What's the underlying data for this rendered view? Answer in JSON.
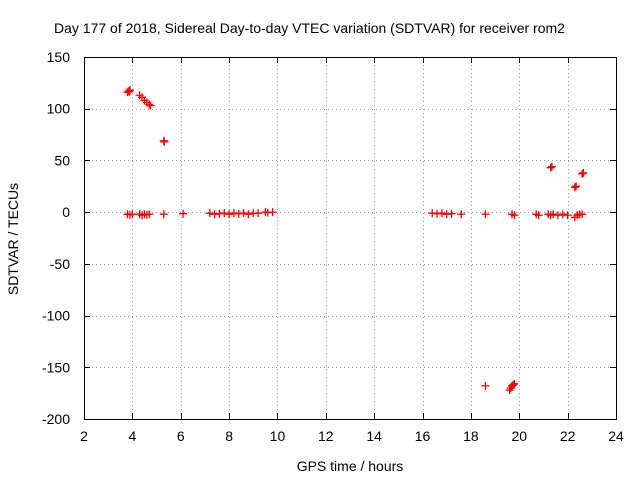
{
  "chart_data": {
    "type": "scatter",
    "title": "Day 177 of 2018, Sidereal Day-to-day VTEC variation (SDTVAR) for receiver rom2",
    "xlabel": "GPS time / hours",
    "ylabel": "SDTVAR / TECUs",
    "xlim": [
      2,
      24
    ],
    "ylim": [
      -200,
      150
    ],
    "xticks": [
      2,
      4,
      6,
      8,
      10,
      12,
      14,
      16,
      18,
      20,
      22,
      24
    ],
    "yticks": [
      -200,
      -150,
      -100,
      -50,
      0,
      50,
      100,
      150
    ],
    "grid": true,
    "marker": "plus",
    "color": "#ff0000",
    "series": [
      {
        "name": "SDTVAR",
        "points": [
          [
            3.8,
            116
          ],
          [
            3.85,
            117
          ],
          [
            3.9,
            118
          ],
          [
            3.88,
            116.5
          ],
          [
            4.3,
            113
          ],
          [
            4.4,
            111
          ],
          [
            4.5,
            108
          ],
          [
            4.6,
            106
          ],
          [
            4.7,
            104
          ],
          [
            4.75,
            103
          ],
          [
            5.3,
            69
          ],
          [
            5.32,
            68
          ],
          [
            3.8,
            -2
          ],
          [
            3.9,
            -2.5
          ],
          [
            4.0,
            -2
          ],
          [
            4.3,
            -2
          ],
          [
            4.4,
            -3
          ],
          [
            4.5,
            -2
          ],
          [
            4.6,
            -2.5
          ],
          [
            4.7,
            -2
          ],
          [
            5.3,
            -2
          ],
          [
            6.1,
            -1.5
          ],
          [
            7.2,
            -1
          ],
          [
            7.4,
            -2
          ],
          [
            7.6,
            -1.5
          ],
          [
            7.8,
            -1
          ],
          [
            8.0,
            -2
          ],
          [
            8.2,
            -1
          ],
          [
            8.4,
            -1.5
          ],
          [
            8.6,
            -1
          ],
          [
            8.8,
            -2
          ],
          [
            9.0,
            -1
          ],
          [
            9.2,
            -1
          ],
          [
            9.5,
            0
          ],
          [
            9.6,
            -0.5
          ],
          [
            9.8,
            0
          ],
          [
            16.4,
            -1
          ],
          [
            16.6,
            -1.5
          ],
          [
            16.8,
            -1
          ],
          [
            17.0,
            -2
          ],
          [
            17.2,
            -1.5
          ],
          [
            17.6,
            -2
          ],
          [
            18.6,
            -2
          ],
          [
            18.6,
            -168
          ],
          [
            19.6,
            -172
          ],
          [
            19.65,
            -170
          ],
          [
            19.7,
            -168
          ],
          [
            19.75,
            -167
          ],
          [
            19.8,
            -166
          ],
          [
            19.7,
            -2
          ],
          [
            19.8,
            -3
          ],
          [
            20.7,
            -2
          ],
          [
            20.8,
            -3
          ],
          [
            21.2,
            -2
          ],
          [
            21.3,
            -3
          ],
          [
            21.4,
            -2
          ],
          [
            21.6,
            -3
          ],
          [
            21.8,
            -2
          ],
          [
            22.0,
            -3
          ],
          [
            22.3,
            -5
          ],
          [
            22.4,
            -3
          ],
          [
            22.5,
            -2
          ],
          [
            22.6,
            -2
          ],
          [
            21.3,
            43
          ],
          [
            21.35,
            44
          ],
          [
            22.3,
            24
          ],
          [
            22.35,
            25
          ],
          [
            22.6,
            37
          ],
          [
            22.65,
            38
          ]
        ]
      }
    ]
  }
}
